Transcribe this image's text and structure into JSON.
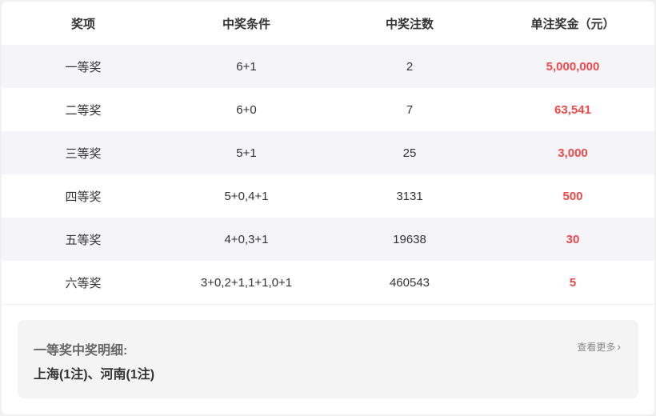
{
  "table": {
    "headers": [
      "奖项",
      "中奖条件",
      "中奖注数",
      "单注奖金（元）"
    ],
    "rows": [
      {
        "prize": "一等奖",
        "condition": "6+1",
        "count": "2",
        "amount": "5,000,000"
      },
      {
        "prize": "二等奖",
        "condition": "6+0",
        "count": "7",
        "amount": "63,541"
      },
      {
        "prize": "三等奖",
        "condition": "5+1",
        "count": "25",
        "amount": "3,000"
      },
      {
        "prize": "四等奖",
        "condition": "5+0,4+1",
        "count": "3131",
        "amount": "500"
      },
      {
        "prize": "五等奖",
        "condition": "4+0,3+1",
        "count": "19638",
        "amount": "30"
      },
      {
        "prize": "六等奖",
        "condition": "3+0,2+1,1+1,0+1",
        "count": "460543",
        "amount": "5"
      }
    ]
  },
  "detail": {
    "title": "一等奖中奖明细:",
    "body": "上海(1注)、河南(1注)",
    "more_label": "查看更多",
    "more_icon": "chevron-right-icon"
  },
  "colors": {
    "amount": "#f04848",
    "alt_row": "#f5f5f9"
  }
}
